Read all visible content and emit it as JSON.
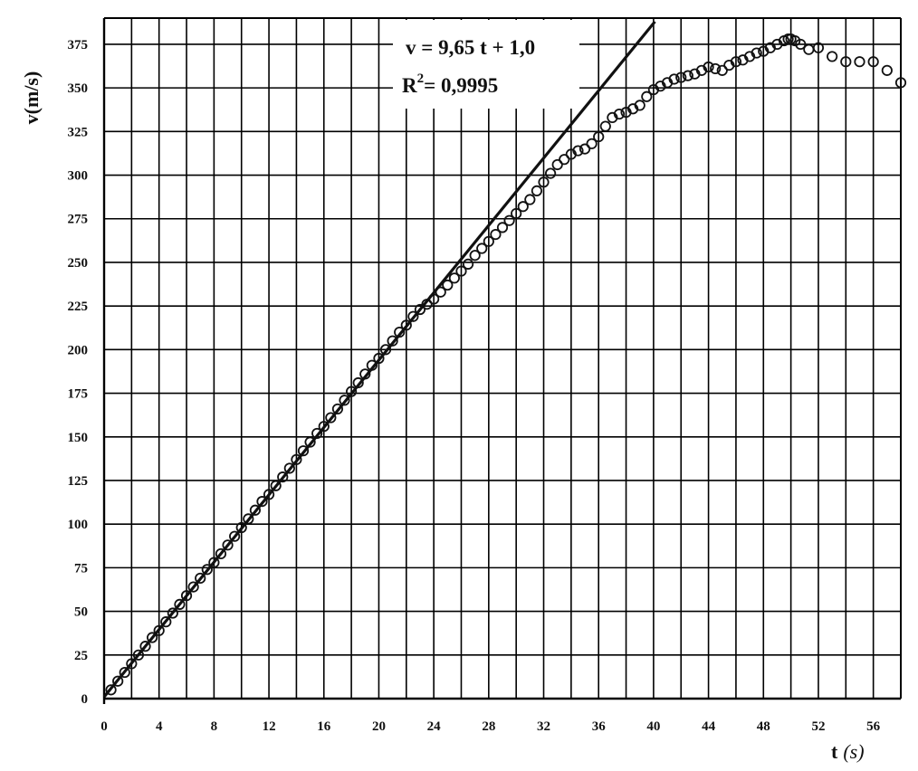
{
  "chart_data": {
    "type": "scatter",
    "xlabel": "t",
    "xlabel_unit": "(s)",
    "ylabel": "v(m/s)",
    "xlim": [
      0,
      58
    ],
    "ylim": [
      0,
      390
    ],
    "xticks": [
      0,
      4,
      8,
      12,
      16,
      20,
      24,
      28,
      32,
      36,
      40,
      44,
      48,
      52,
      56
    ],
    "yticks": [
      0,
      25,
      50,
      75,
      100,
      125,
      150,
      175,
      200,
      225,
      250,
      275,
      300,
      325,
      350,
      375
    ],
    "x_grid_step": 2,
    "grid": true,
    "annotation": {
      "equation": "v = 9,65 t + 1,0",
      "r2_prefix": "R",
      "r2_exponent": "2",
      "r2_value": "= 0,9995"
    },
    "fit_line": {
      "slope": 9.65,
      "intercept": 1.0,
      "x_range": [
        0,
        40.1
      ]
    },
    "series": [
      {
        "marker": "open-circle",
        "points": [
          [
            0.5,
            5
          ],
          [
            1.0,
            10
          ],
          [
            1.5,
            15
          ],
          [
            2.0,
            20
          ],
          [
            2.5,
            25
          ],
          [
            3.0,
            30
          ],
          [
            3.5,
            35
          ],
          [
            4.0,
            39
          ],
          [
            4.5,
            44
          ],
          [
            5.0,
            49
          ],
          [
            5.5,
            54
          ],
          [
            6.0,
            59
          ],
          [
            6.5,
            64
          ],
          [
            7.0,
            69
          ],
          [
            7.5,
            74
          ],
          [
            8.0,
            78
          ],
          [
            8.5,
            83
          ],
          [
            9.0,
            88
          ],
          [
            9.5,
            93
          ],
          [
            10.0,
            98
          ],
          [
            10.5,
            103
          ],
          [
            11.0,
            108
          ],
          [
            11.5,
            113
          ],
          [
            12.0,
            117
          ],
          [
            12.5,
            122
          ],
          [
            13.0,
            127
          ],
          [
            13.5,
            132
          ],
          [
            14.0,
            137
          ],
          [
            14.5,
            142
          ],
          [
            15.0,
            147
          ],
          [
            15.5,
            152
          ],
          [
            16.0,
            156
          ],
          [
            16.5,
            161
          ],
          [
            17.0,
            166
          ],
          [
            17.5,
            171
          ],
          [
            18.0,
            176
          ],
          [
            18.5,
            181
          ],
          [
            19.0,
            186
          ],
          [
            19.5,
            191
          ],
          [
            20.0,
            195
          ],
          [
            20.5,
            200
          ],
          [
            21.0,
            205
          ],
          [
            21.5,
            210
          ],
          [
            22.0,
            214
          ],
          [
            22.5,
            219
          ],
          [
            23.0,
            223
          ],
          [
            23.5,
            226
          ],
          [
            24.0,
            229
          ],
          [
            24.5,
            233
          ],
          [
            25.0,
            237
          ],
          [
            25.5,
            241
          ],
          [
            26.0,
            245
          ],
          [
            26.5,
            249
          ],
          [
            27.0,
            254
          ],
          [
            27.5,
            258
          ],
          [
            28.0,
            262
          ],
          [
            28.5,
            266
          ],
          [
            29.0,
            270
          ],
          [
            29.5,
            274
          ],
          [
            30.0,
            278
          ],
          [
            30.5,
            282
          ],
          [
            31.0,
            286
          ],
          [
            31.5,
            291
          ],
          [
            32.0,
            296
          ],
          [
            32.5,
            301
          ],
          [
            33.0,
            306
          ],
          [
            33.5,
            309
          ],
          [
            34.0,
            312
          ],
          [
            34.5,
            314
          ],
          [
            35.0,
            315
          ],
          [
            35.5,
            318
          ],
          [
            36.0,
            322
          ],
          [
            36.5,
            328
          ],
          [
            37.0,
            333
          ],
          [
            37.5,
            335
          ],
          [
            38.0,
            336
          ],
          [
            38.5,
            338
          ],
          [
            39.0,
            340
          ],
          [
            39.5,
            345
          ],
          [
            40.0,
            349
          ],
          [
            40.5,
            351
          ],
          [
            41.0,
            353
          ],
          [
            41.5,
            355
          ],
          [
            42.0,
            356
          ],
          [
            42.5,
            357
          ],
          [
            43.0,
            358
          ],
          [
            43.5,
            360
          ],
          [
            44.0,
            362
          ],
          [
            44.5,
            361
          ],
          [
            45.0,
            360
          ],
          [
            45.5,
            363
          ],
          [
            46.0,
            365
          ],
          [
            46.5,
            366
          ],
          [
            47.0,
            368
          ],
          [
            47.5,
            370
          ],
          [
            48.0,
            371
          ],
          [
            48.5,
            373
          ],
          [
            49.0,
            375
          ],
          [
            49.5,
            377
          ],
          [
            49.8,
            378
          ],
          [
            50.0,
            378
          ],
          [
            50.3,
            377
          ],
          [
            50.7,
            375
          ],
          [
            51.3,
            372
          ],
          [
            52.0,
            373
          ],
          [
            53.0,
            368
          ],
          [
            54.0,
            365
          ],
          [
            55.0,
            365
          ],
          [
            56.0,
            365
          ],
          [
            57.0,
            360
          ],
          [
            58.0,
            353
          ]
        ]
      }
    ]
  }
}
